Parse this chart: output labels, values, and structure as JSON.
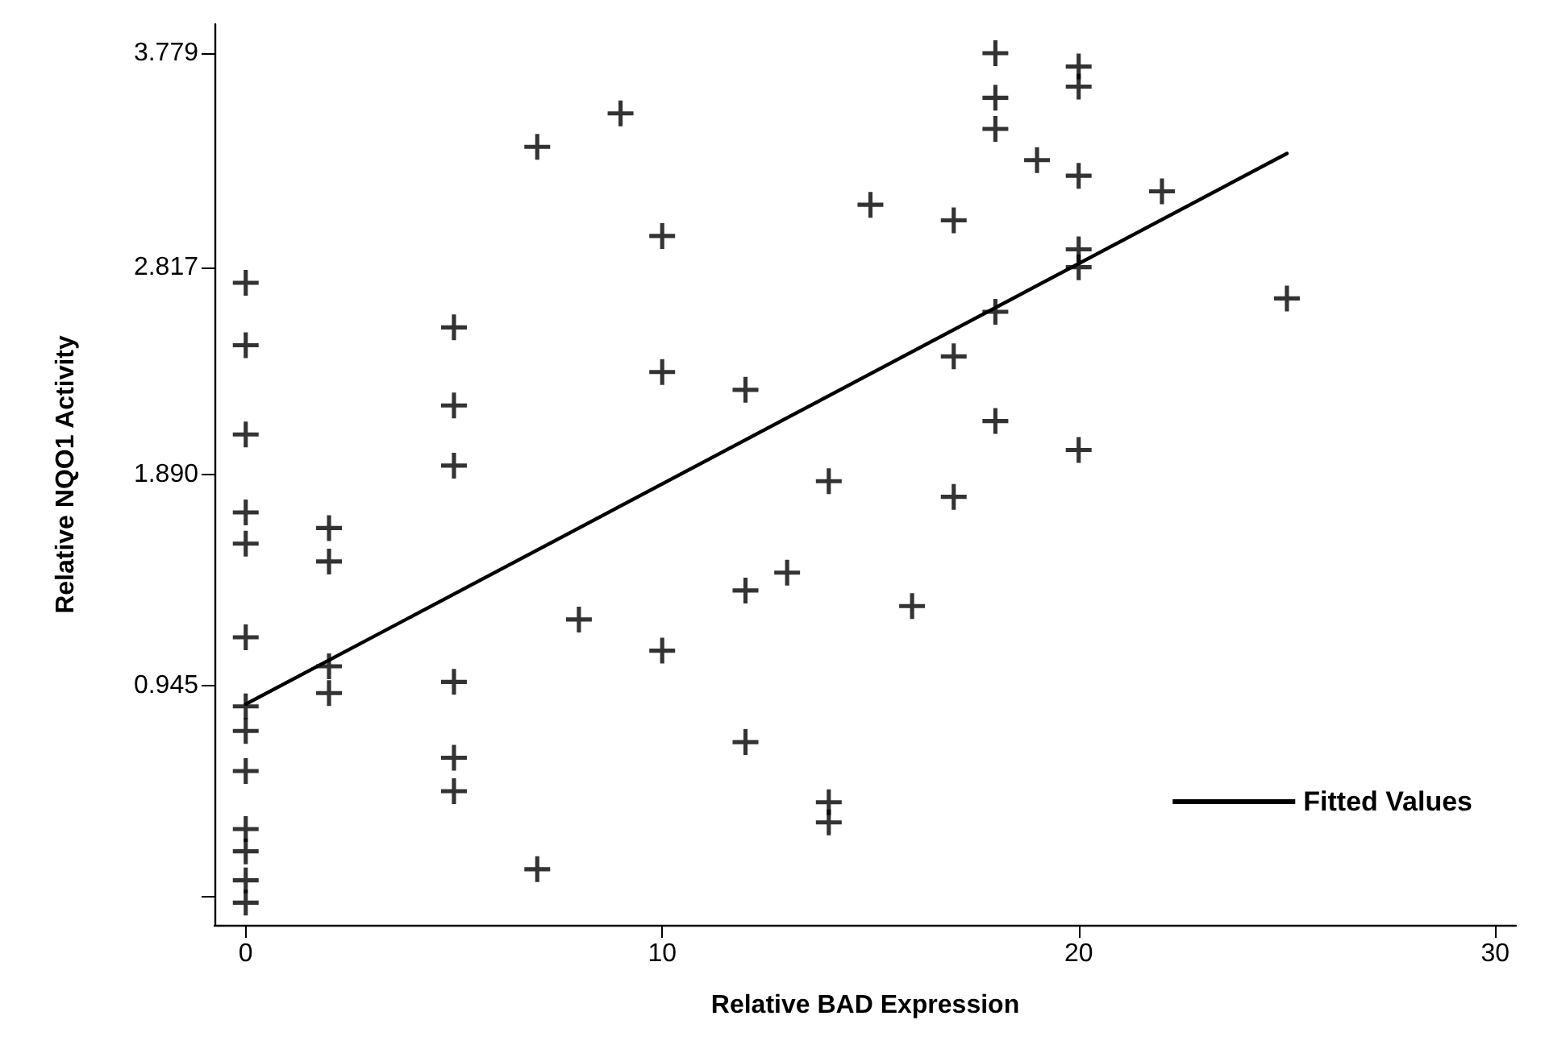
{
  "chart_data": {
    "type": "scatter",
    "xlabel": "Relative BAD Expression",
    "ylabel": "Relative NQO1 Activity",
    "xlim": [
      -0.75,
      30.5
    ],
    "xticks": [
      0,
      10,
      20,
      30
    ],
    "ylim": [
      -0.13,
      3.91
    ],
    "yticks": [
      {
        "value": 0,
        "label": null
      },
      0.945,
      {
        "value": 1.89,
        "label": "1.890"
      },
      2.817,
      3.779
    ],
    "grid": false,
    "legend": "bottom right",
    "series": [
      {
        "color": "#000000",
        "marker": "cross",
        "x": [
          9,
          7,
          10,
          0,
          5,
          0,
          10,
          5,
          0,
          5,
          0,
          2,
          0,
          2,
          8,
          0,
          10,
          2,
          2,
          5,
          0,
          0,
          0,
          5,
          5,
          0,
          0,
          0,
          0,
          7,
          18,
          20,
          20,
          18,
          18,
          19,
          20,
          15,
          17,
          20,
          20,
          18,
          17,
          12,
          18,
          20,
          14,
          17,
          13,
          12,
          16,
          12,
          14,
          14,
          22,
          25
        ],
        "values": [
          3.51,
          3.36,
          2.96,
          2.75,
          2.55,
          2.47,
          2.35,
          2.2,
          2.07,
          1.93,
          1.72,
          1.65,
          1.58,
          1.5,
          1.24,
          1.16,
          1.1,
          1.03,
          0.91,
          0.96,
          0.85,
          0.74,
          0.56,
          0.62,
          0.47,
          0.3,
          0.2,
          0.07,
          -0.03,
          0.12,
          3.78,
          3.72,
          3.63,
          3.58,
          3.44,
          3.3,
          3.23,
          3.1,
          3.03,
          2.9,
          2.82,
          2.62,
          2.42,
          2.27,
          2.13,
          2.0,
          1.86,
          1.79,
          1.45,
          1.37,
          1.3,
          0.69,
          0.42,
          0.33,
          3.16,
          2.68
        ]
      },
      {
        "type": "line",
        "name": "Fitted Values",
        "color": "#000000",
        "marker": "none",
        "line_style": "solid",
        "x": [
          0,
          25
        ],
        "values": [
          0.86,
          3.33
        ]
      }
    ]
  }
}
